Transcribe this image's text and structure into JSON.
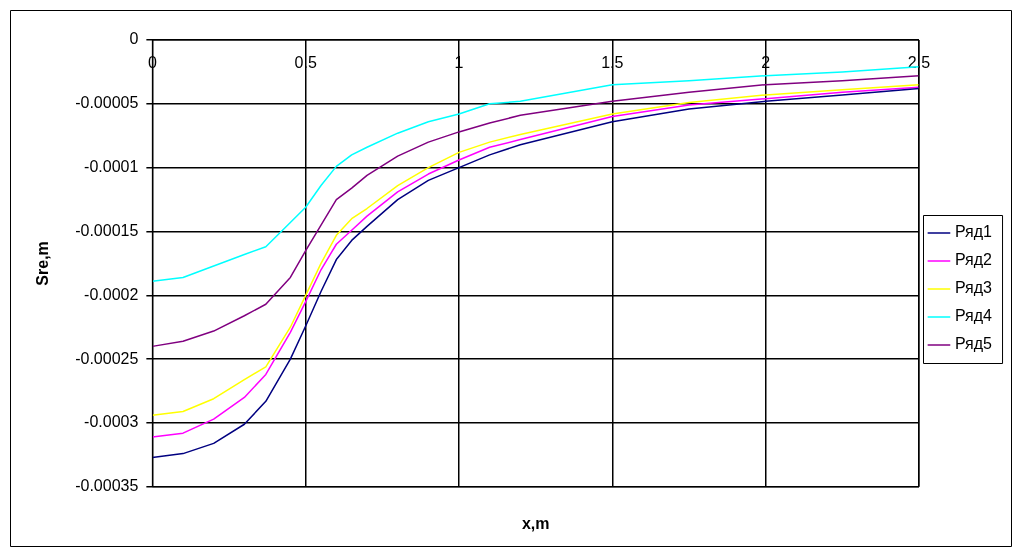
{
  "chart_data": {
    "type": "line",
    "xlabel": "x,m",
    "ylabel": "Sre,m",
    "x": [
      0,
      0.1,
      0.2,
      0.3,
      0.37,
      0.45,
      0.5,
      0.55,
      0.6,
      0.65,
      0.7,
      0.8,
      0.9,
      1,
      1.1,
      1.2,
      1.5,
      1.75,
      2,
      2.25,
      2.5
    ],
    "series": [
      {
        "name": "Ряд1",
        "color": "#000080",
        "values": [
          -0.000327,
          -0.000324,
          -0.000316,
          -0.000301,
          -0.000283,
          -0.00025,
          -0.000224,
          -0.000197,
          -0.000172,
          -0.000157,
          -0.000146,
          -0.000125,
          -0.00011,
          -0.0001,
          -9e-05,
          -8.2e-05,
          -6.4e-05,
          -5.4e-05,
          -4.8e-05,
          -4.3e-05,
          -3.8e-05
        ]
      },
      {
        "name": "Ряд2",
        "color": "#ff00ff",
        "values": [
          -0.000311,
          -0.000308,
          -0.000297,
          -0.00028,
          -0.000262,
          -0.000229,
          -0.000205,
          -0.00018,
          -0.00016,
          -0.000149,
          -0.000138,
          -0.000119,
          -0.000105,
          -9.4e-05,
          -8.4e-05,
          -7.8e-05,
          -6e-05,
          -5.1e-05,
          -4.6e-05,
          -4.1e-05,
          -3.7e-05
        ]
      },
      {
        "name": "Ряд3",
        "color": "#ffff00",
        "values": [
          -0.000294,
          -0.000291,
          -0.000281,
          -0.000266,
          -0.000256,
          -0.000225,
          -0.0002,
          -0.000175,
          -0.000153,
          -0.00014,
          -0.000132,
          -0.000114,
          -0.0001,
          -8.8e-05,
          -8e-05,
          -7.4e-05,
          -5.8e-05,
          -4.9e-05,
          -4.3e-05,
          -3.9e-05,
          -3.5e-05
        ]
      },
      {
        "name": "Ряд4",
        "color": "#00ffff",
        "values": [
          -0.000189,
          -0.000186,
          -0.000177,
          -0.000168,
          -0.000162,
          -0.000143,
          -0.000131,
          -0.000114,
          -9.9e-05,
          -9e-05,
          -8.4e-05,
          -7.3e-05,
          -6.4e-05,
          -5.8e-05,
          -5e-05,
          -4.8e-05,
          -3.5e-05,
          -3.2e-05,
          -2.8e-05,
          -2.5e-05,
          -2.1e-05
        ]
      },
      {
        "name": "Ряд5",
        "color": "#800080",
        "values": [
          -0.00024,
          -0.000236,
          -0.000228,
          -0.000216,
          -0.000207,
          -0.000186,
          -0.000165,
          -0.000145,
          -0.000125,
          -0.000116,
          -0.000106,
          -9.1e-05,
          -8e-05,
          -7.2e-05,
          -6.5e-05,
          -5.9e-05,
          -4.8e-05,
          -4.1e-05,
          -3.5e-05,
          -3.2e-05,
          -2.8e-05
        ]
      }
    ],
    "xlim": [
      0,
      2.5
    ],
    "xticks": [
      0,
      0.5,
      1,
      1.5,
      2,
      2.5
    ],
    "ylim": [
      -0.00035,
      0
    ],
    "yticks": [
      -0.00035,
      -0.0003,
      -0.00025,
      -0.0002,
      -0.00015,
      -0.0001,
      {
        "value": -5e-05,
        "label": "-0.00005"
      },
      0
    ],
    "grid": true,
    "legend": "right",
    "marker": "none",
    "line_style": "solid"
  }
}
